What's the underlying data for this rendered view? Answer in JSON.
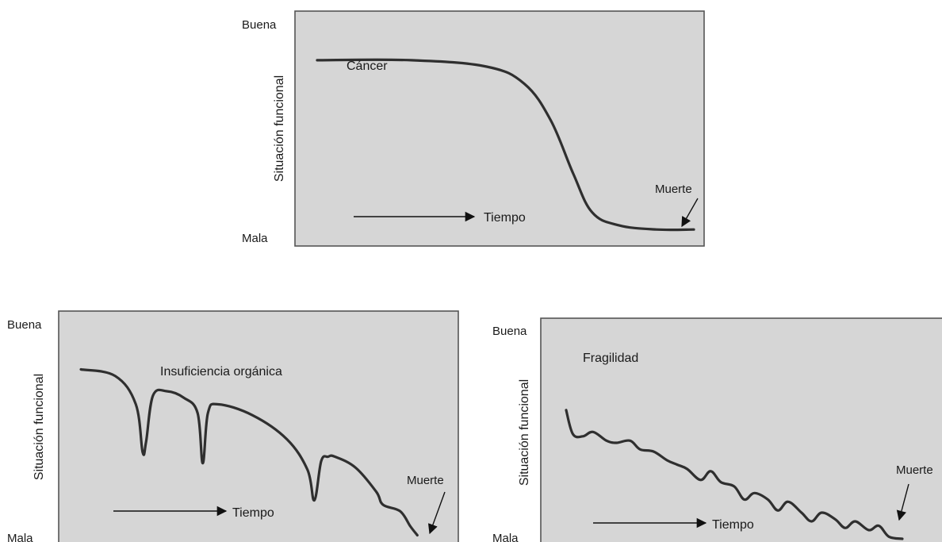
{
  "chart_data": [
    {
      "type": "line",
      "curve_label": "Cáncer",
      "ylabel": "Situación funcional",
      "y_top_label": "Buena",
      "y_bottom_label": "Mala",
      "time_label": "Tiempo",
      "end_label": "Muerte",
      "ylim": [
        0,
        1
      ],
      "x": [
        0.0,
        0.25,
        0.45,
        0.55,
        0.62,
        0.68,
        0.73,
        0.8,
        0.9,
        1.0
      ],
      "y": [
        0.83,
        0.83,
        0.8,
        0.72,
        0.55,
        0.3,
        0.12,
        0.06,
        0.04,
        0.04
      ]
    },
    {
      "type": "line",
      "curve_label": "Insuficiencia orgánica",
      "ylabel": "Situación funcional",
      "y_top_label": "Buena",
      "y_bottom_label": "Mala",
      "time_label": "Tiempo",
      "end_label": "Muerte",
      "ylim": [
        0,
        1
      ],
      "x": [
        0.0,
        0.1,
        0.16,
        0.18,
        0.19,
        0.21,
        0.25,
        0.3,
        0.34,
        0.355,
        0.37,
        0.4,
        0.5,
        0.6,
        0.66,
        0.68,
        0.7,
        0.72,
        0.74,
        0.8,
        0.86,
        0.88,
        0.93,
        0.96,
        0.98
      ],
      "y": [
        0.78,
        0.75,
        0.62,
        0.4,
        0.45,
        0.66,
        0.68,
        0.65,
        0.58,
        0.35,
        0.58,
        0.62,
        0.57,
        0.46,
        0.32,
        0.18,
        0.36,
        0.38,
        0.38,
        0.33,
        0.22,
        0.16,
        0.13,
        0.06,
        0.02
      ]
    },
    {
      "type": "line",
      "curve_label": "Fragilidad",
      "ylabel": "Situación funcional",
      "y_top_label": "Buena",
      "y_bottom_label": "Mala",
      "time_label": "Tiempo",
      "end_label": "Muerte",
      "ylim": [
        0,
        1
      ],
      "x": [
        0.0,
        0.02,
        0.05,
        0.08,
        0.12,
        0.15,
        0.19,
        0.22,
        0.26,
        0.3,
        0.33,
        0.36,
        0.4,
        0.43,
        0.46,
        0.5,
        0.53,
        0.56,
        0.6,
        0.63,
        0.66,
        0.7,
        0.73,
        0.76,
        0.8,
        0.83,
        0.86,
        0.9,
        0.93,
        0.96,
        1.0
      ],
      "y": [
        0.63,
        0.52,
        0.51,
        0.53,
        0.49,
        0.48,
        0.49,
        0.45,
        0.44,
        0.4,
        0.38,
        0.36,
        0.31,
        0.35,
        0.3,
        0.28,
        0.22,
        0.25,
        0.22,
        0.17,
        0.21,
        0.16,
        0.12,
        0.16,
        0.13,
        0.09,
        0.12,
        0.08,
        0.1,
        0.05,
        0.04
      ]
    }
  ]
}
